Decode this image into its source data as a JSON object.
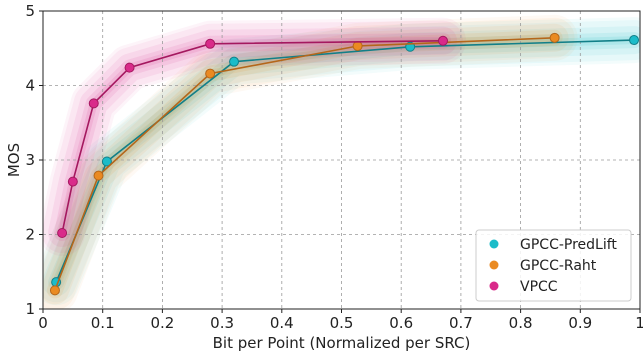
{
  "chart_data": {
    "type": "line",
    "xlabel": "Bit per Point (Normalized per SRC)",
    "ylabel": "MOS",
    "xlim": [
      0,
      1
    ],
    "ylim": [
      1,
      5
    ],
    "xticks": [
      0,
      0.1,
      0.2,
      0.3,
      0.4,
      0.5,
      0.6,
      0.7,
      0.8,
      0.9,
      1
    ],
    "xtick_labels": [
      "0",
      "0.1",
      "0.2",
      "0.3",
      "0.4",
      "0.5",
      "0.6",
      "0.7",
      "0.8",
      "0.9",
      "1"
    ],
    "yticks": [
      1,
      2,
      3,
      4,
      5
    ],
    "ytick_labels": [
      "1",
      "2",
      "3",
      "4",
      "5"
    ],
    "grid": true,
    "legend_position": "bottom-right",
    "series": [
      {
        "name": "GPCC-PredLift",
        "color": "#1bbcc9",
        "line_color": "#127f88",
        "x": [
          0.022,
          0.107,
          0.32,
          0.615,
          0.99
        ],
        "y": [
          1.36,
          2.98,
          4.32,
          4.52,
          4.61
        ]
      },
      {
        "name": "GPCC-Raht",
        "color": "#ea8a22",
        "line_color": "#b4661a",
        "x": [
          0.02,
          0.093,
          0.28,
          0.527,
          0.857
        ],
        "y": [
          1.25,
          2.79,
          4.16,
          4.53,
          4.64
        ]
      },
      {
        "name": "VPCC",
        "color": "#d92a8a",
        "line_color": "#a4185f",
        "x": [
          0.032,
          0.05,
          0.085,
          0.145,
          0.28,
          0.67
        ],
        "y": [
          2.02,
          2.71,
          3.76,
          4.24,
          4.56,
          4.6
        ]
      }
    ]
  }
}
